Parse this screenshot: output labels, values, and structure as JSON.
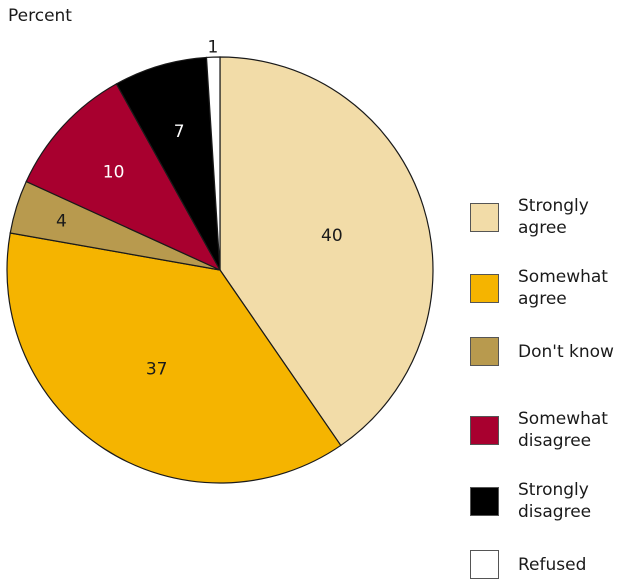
{
  "chart_data": {
    "type": "pie",
    "unit_label": "Percent",
    "slices": [
      {
        "label": "Strongly agree",
        "legend_lines": [
          "Strongly",
          "agree"
        ],
        "value": 40,
        "color": "#f2dca8",
        "label_color": "#1a1a1a"
      },
      {
        "label": "Somewhat agree",
        "legend_lines": [
          "Somewhat",
          "agree"
        ],
        "value": 37,
        "color": "#f5b400",
        "label_color": "#1a1a1a"
      },
      {
        "label": "Don't know",
        "legend_lines": [
          "Don't know"
        ],
        "value": 4,
        "color": "#b89a4e",
        "label_color": "#1a1a1a"
      },
      {
        "label": "Somewhat disagree",
        "legend_lines": [
          "Somewhat",
          "disagree"
        ],
        "value": 10,
        "color": "#a8002f",
        "label_color": "#ffffff"
      },
      {
        "label": "Strongly disagree",
        "legend_lines": [
          "Strongly",
          "disagree"
        ],
        "value": 7,
        "color": "#000000",
        "label_color": "#ffffff"
      },
      {
        "label": "Refused",
        "legend_lines": [
          "Refused"
        ],
        "value": 1,
        "color": "#ffffff",
        "label_color": "#1a1a1a"
      }
    ],
    "legend_position": "right"
  }
}
